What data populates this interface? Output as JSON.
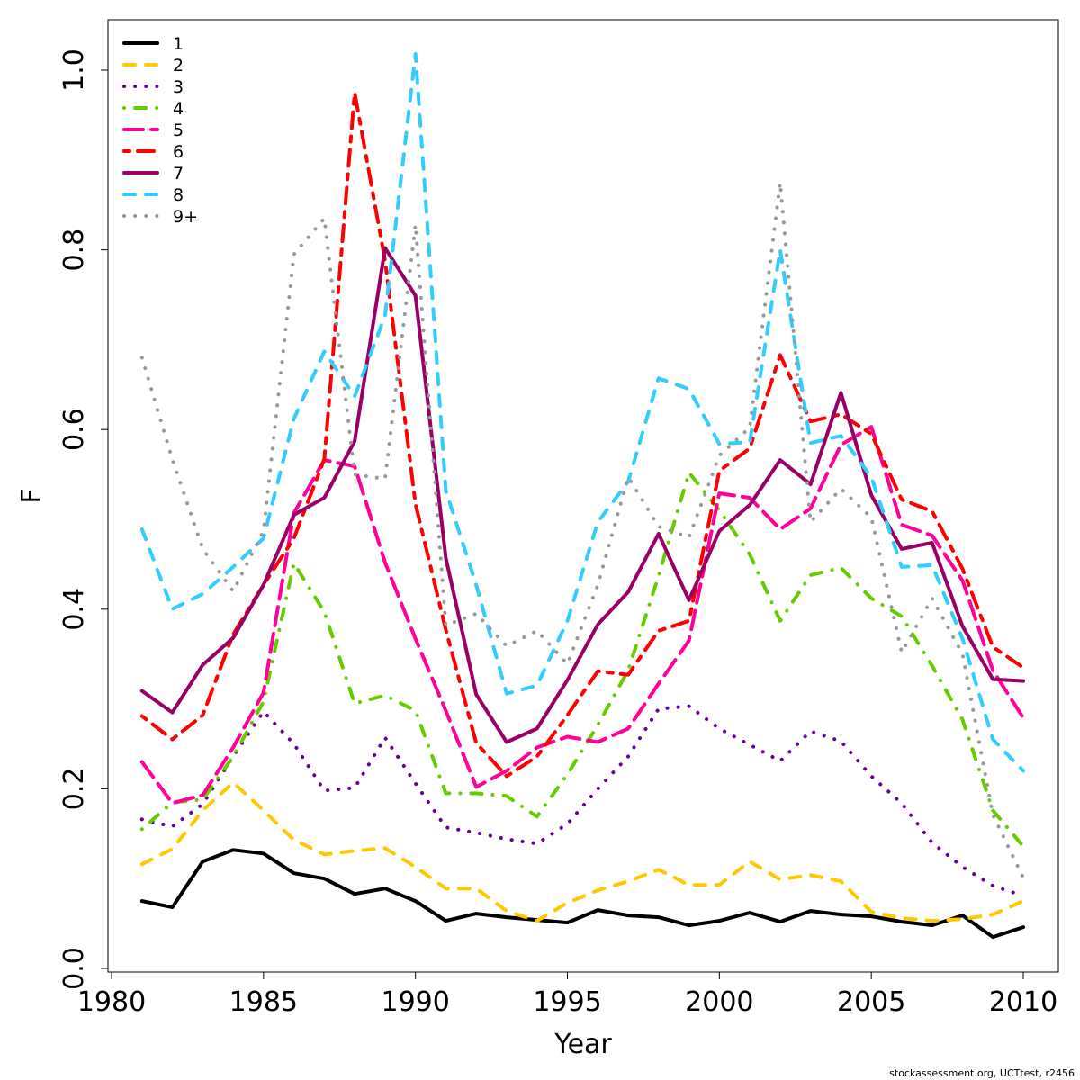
{
  "chart_data": {
    "type": "line",
    "title": "",
    "xlabel": "Year",
    "ylabel": "F",
    "xlim": [
      1980,
      2010
    ],
    "ylim": [
      0.0,
      1.0
    ],
    "x_ticks": [
      "1980",
      "1985",
      "1990",
      "1995",
      "2000",
      "2005",
      "2010"
    ],
    "y_ticks": [
      "0.0",
      "0.2",
      "0.4",
      "0.6",
      "0.8",
      "1.0"
    ],
    "grid": false,
    "legend_position": "top-left",
    "x": [
      1981,
      1982,
      1983,
      1984,
      1985,
      1986,
      1987,
      1988,
      1989,
      1990,
      1991,
      1992,
      1993,
      1994,
      1995,
      1996,
      1997,
      1998,
      1999,
      2000,
      2001,
      2002,
      2003,
      2004,
      2005,
      2006,
      2007,
      2008,
      2009,
      2010
    ],
    "series": [
      {
        "name": "1",
        "color": "#000000",
        "style": "solid",
        "values": [
          0.075,
          0.068,
          0.119,
          0.132,
          0.128,
          0.106,
          0.1,
          0.083,
          0.089,
          0.075,
          0.053,
          0.061,
          0.057,
          0.054,
          0.051,
          0.065,
          0.059,
          0.057,
          0.048,
          0.053,
          0.062,
          0.052,
          0.064,
          0.06,
          0.058,
          0.052,
          0.048,
          0.059,
          0.035,
          0.046
        ]
      },
      {
        "name": "2",
        "color": "#FFC800",
        "style": "dashed",
        "values": [
          0.116,
          0.133,
          0.176,
          0.207,
          0.176,
          0.143,
          0.127,
          0.131,
          0.134,
          0.113,
          0.089,
          0.089,
          0.064,
          0.053,
          0.073,
          0.087,
          0.097,
          0.11,
          0.093,
          0.093,
          0.119,
          0.099,
          0.104,
          0.097,
          0.063,
          0.056,
          0.053,
          0.055,
          0.06,
          0.075
        ]
      },
      {
        "name": "3",
        "color": "#660099",
        "style": "dotted",
        "values": [
          0.166,
          0.158,
          0.183,
          0.236,
          0.286,
          0.25,
          0.198,
          0.201,
          0.257,
          0.206,
          0.157,
          0.151,
          0.144,
          0.139,
          0.161,
          0.2,
          0.236,
          0.289,
          0.292,
          0.267,
          0.249,
          0.231,
          0.264,
          0.253,
          0.214,
          0.184,
          0.14,
          0.113,
          0.092,
          0.081
        ]
      },
      {
        "name": "4",
        "color": "#66CC00",
        "style": "dotdash",
        "values": [
          0.155,
          0.185,
          0.188,
          0.236,
          0.297,
          0.451,
          0.397,
          0.295,
          0.304,
          0.287,
          0.195,
          0.195,
          0.192,
          0.169,
          0.216,
          0.271,
          0.332,
          0.437,
          0.552,
          0.51,
          0.461,
          0.387,
          0.438,
          0.446,
          0.412,
          0.392,
          0.337,
          0.277,
          0.176,
          0.136
        ]
      },
      {
        "name": "5",
        "color": "#FF0099",
        "style": "longdash",
        "values": [
          0.23,
          0.184,
          0.193,
          0.246,
          0.307,
          0.507,
          0.566,
          0.559,
          0.452,
          0.367,
          0.287,
          0.202,
          0.22,
          0.246,
          0.258,
          0.252,
          0.267,
          0.317,
          0.365,
          0.529,
          0.524,
          0.489,
          0.512,
          0.583,
          0.603,
          0.494,
          0.482,
          0.432,
          0.332,
          0.279
        ]
      },
      {
        "name": "6",
        "color": "#FF0000",
        "style": "twodash",
        "values": [
          0.281,
          0.255,
          0.282,
          0.372,
          0.427,
          0.479,
          0.567,
          0.975,
          0.788,
          0.517,
          0.377,
          0.251,
          0.214,
          0.236,
          0.282,
          0.331,
          0.327,
          0.376,
          0.387,
          0.554,
          0.579,
          0.683,
          0.609,
          0.617,
          0.595,
          0.522,
          0.509,
          0.445,
          0.358,
          0.335
        ]
      },
      {
        "name": "7",
        "color": "#990066",
        "style": "solid",
        "values": [
          0.309,
          0.285,
          0.338,
          0.368,
          0.427,
          0.505,
          0.524,
          0.587,
          0.802,
          0.749,
          0.457,
          0.305,
          0.252,
          0.267,
          0.321,
          0.383,
          0.419,
          0.484,
          0.41,
          0.487,
          0.516,
          0.566,
          0.539,
          0.641,
          0.527,
          0.467,
          0.474,
          0.381,
          0.322,
          0.32
        ]
      },
      {
        "name": "8",
        "color": "#33CCFF",
        "style": "dashed",
        "values": [
          0.489,
          0.4,
          0.417,
          0.447,
          0.479,
          0.612,
          0.687,
          0.637,
          0.727,
          1.018,
          0.532,
          0.427,
          0.306,
          0.315,
          0.387,
          0.497,
          0.542,
          0.657,
          0.645,
          0.584,
          0.586,
          0.8,
          0.585,
          0.593,
          0.547,
          0.447,
          0.449,
          0.367,
          0.255,
          0.22
        ]
      },
      {
        "name": "9+",
        "color": "#999999",
        "style": "dotted",
        "values": [
          0.68,
          0.567,
          0.467,
          0.42,
          0.487,
          0.795,
          0.835,
          0.55,
          0.545,
          0.828,
          0.382,
          0.395,
          0.359,
          0.376,
          0.339,
          0.427,
          0.547,
          0.492,
          0.48,
          0.571,
          0.602,
          0.875,
          0.497,
          0.534,
          0.502,
          0.352,
          0.412,
          0.35,
          0.171,
          0.101
        ]
      }
    ]
  },
  "footer": "stockassessment.org, UCTtest, r2456"
}
